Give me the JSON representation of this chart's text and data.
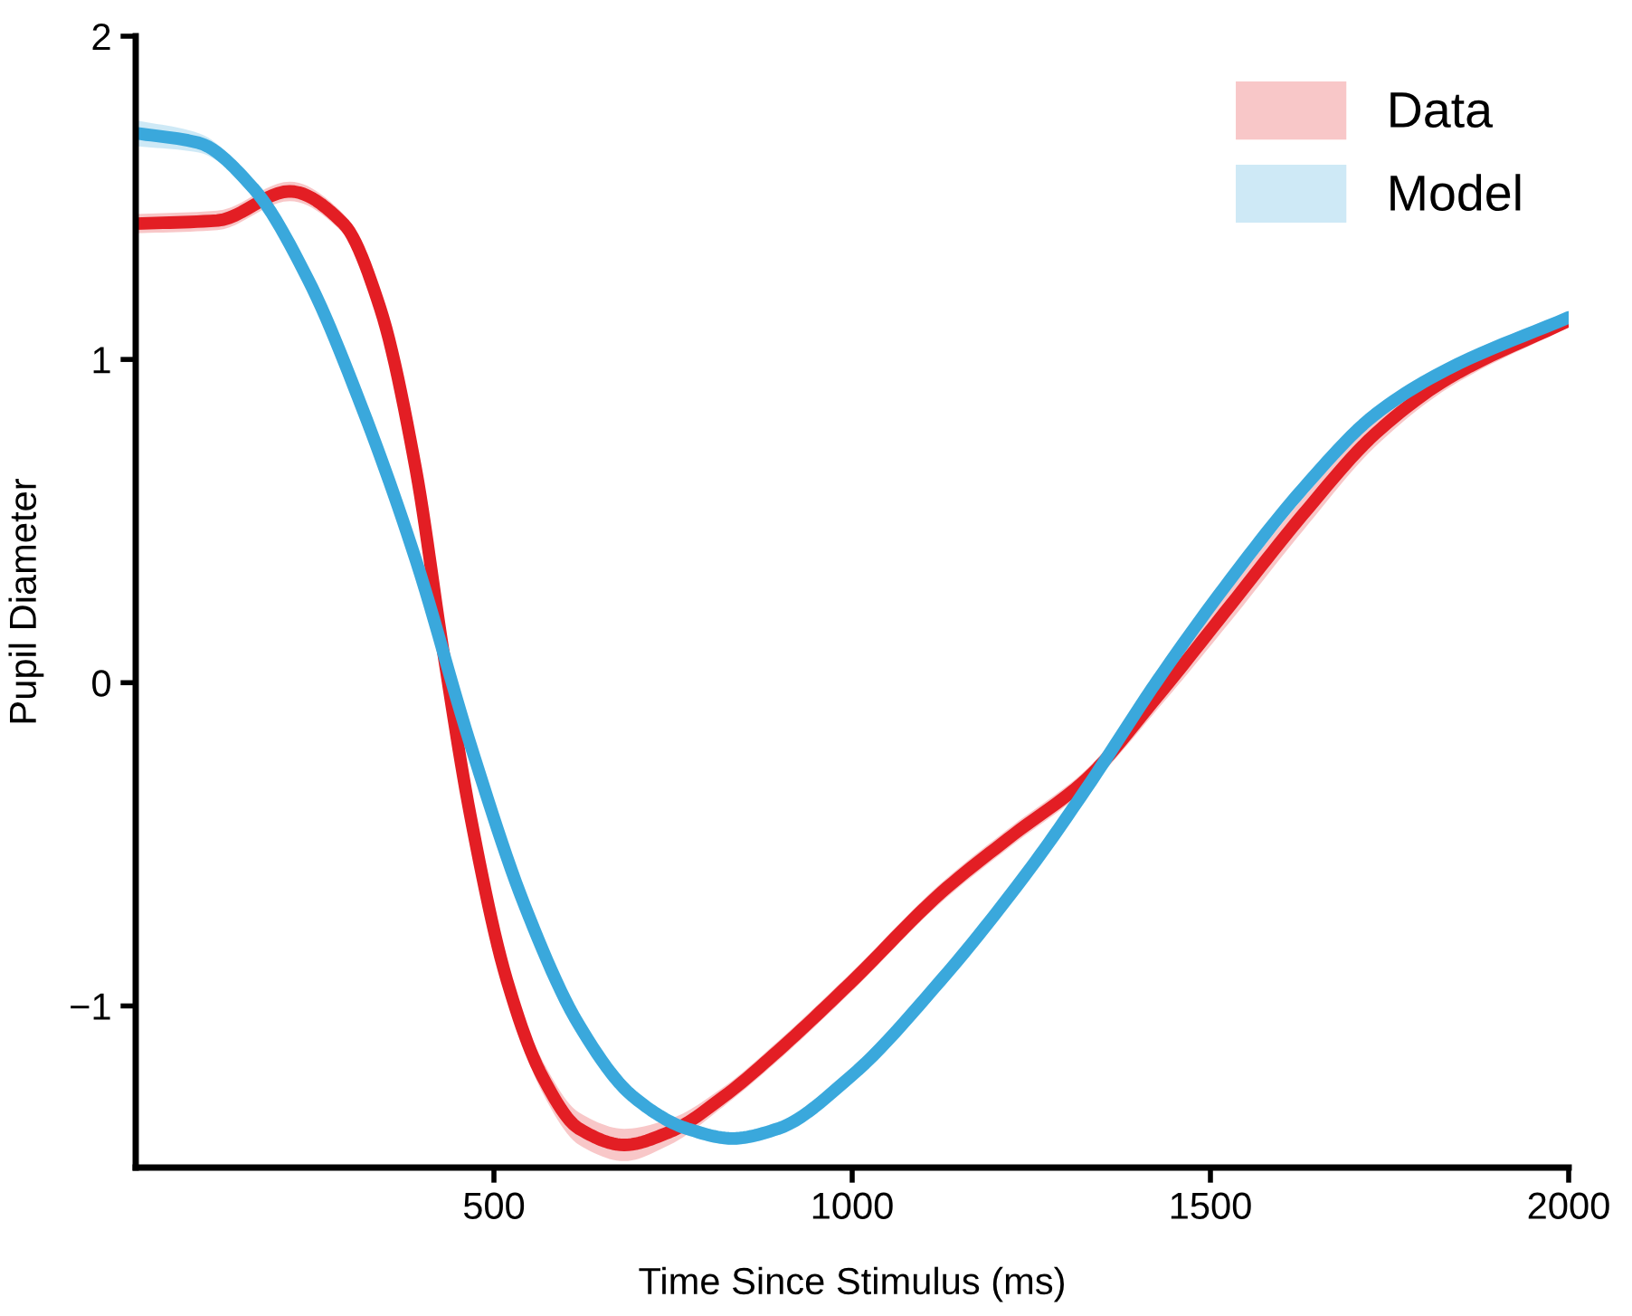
{
  "chart_data": {
    "type": "line",
    "xlabel": "Time Since Stimulus (ms)",
    "ylabel": "Pupil Diameter",
    "xlim": [
      0,
      2000
    ],
    "xticks": [
      500,
      1000,
      1500,
      2000
    ],
    "ylim": [
      -1.5,
      2
    ],
    "yticks": [
      {
        "value": -1,
        "label": "−1"
      },
      0,
      1,
      2
    ],
    "grid": false,
    "legend": "top right",
    "line_style": "solid",
    "marker": "none",
    "series": [
      {
        "name": "Data",
        "color": "#e31e24",
        "x": [
          0,
          114,
          215,
          290,
          341,
          391,
          429,
          467,
          518,
          568,
          619,
          682,
          745,
          821,
          896,
          997,
          1124,
          1225,
          1326,
          1427,
          1528,
          1629,
          1730,
          1831,
          2000
        ],
        "values": [
          1.42,
          1.43,
          1.52,
          1.42,
          1.16,
          0.66,
          0.1,
          -0.41,
          -0.92,
          -1.22,
          -1.38,
          -1.43,
          -1.39,
          -1.28,
          -1.14,
          -0.93,
          -0.65,
          -0.47,
          -0.3,
          -0.04,
          0.24,
          0.52,
          0.77,
          0.94,
          1.12
        ],
        "lower": [
          1.39,
          1.4,
          1.49,
          1.39,
          1.13,
          0.63,
          0.07,
          -0.45,
          -0.96,
          -1.27,
          -1.43,
          -1.48,
          -1.43,
          -1.31,
          -1.17,
          -0.96,
          -0.68,
          -0.5,
          -0.33,
          -0.08,
          0.19,
          0.47,
          0.73,
          0.91,
          1.1
        ],
        "upper": [
          1.45,
          1.46,
          1.55,
          1.45,
          1.19,
          0.69,
          0.13,
          -0.37,
          -0.88,
          -1.17,
          -1.33,
          -1.38,
          -1.35,
          -1.25,
          -1.11,
          -0.9,
          -0.62,
          -0.44,
          -0.27,
          0.0,
          0.29,
          0.57,
          0.81,
          0.97,
          1.14
        ]
      },
      {
        "name": "Model",
        "color": "#3aa8dc",
        "x": [
          0,
          88,
          164,
          240,
          316,
          391,
          467,
          543,
          619,
          694,
          770,
          833,
          896,
          997,
          1124,
          1250,
          1326,
          1427,
          1528,
          1629,
          1730,
          1831,
          2000
        ],
        "values": [
          1.7,
          1.67,
          1.53,
          1.25,
          0.85,
          0.38,
          -0.19,
          -0.69,
          -1.06,
          -1.28,
          -1.38,
          -1.41,
          -1.38,
          -1.22,
          -0.92,
          -0.57,
          -0.33,
          0.01,
          0.32,
          0.6,
          0.83,
          0.97,
          1.13
        ],
        "lower": [
          1.66,
          1.64,
          1.51,
          1.23,
          0.83,
          0.36,
          -0.21,
          -0.71,
          -1.08,
          -1.3,
          -1.4,
          -1.43,
          -1.4,
          -1.24,
          -0.94,
          -0.59,
          -0.35,
          -0.01,
          0.3,
          0.58,
          0.81,
          0.95,
          1.11
        ],
        "upper": [
          1.74,
          1.7,
          1.55,
          1.27,
          0.87,
          0.4,
          -0.17,
          -0.67,
          -1.04,
          -1.26,
          -1.36,
          -1.39,
          -1.36,
          -1.2,
          -0.9,
          -0.55,
          -0.31,
          0.03,
          0.34,
          0.62,
          0.85,
          0.99,
          1.15
        ]
      }
    ]
  }
}
